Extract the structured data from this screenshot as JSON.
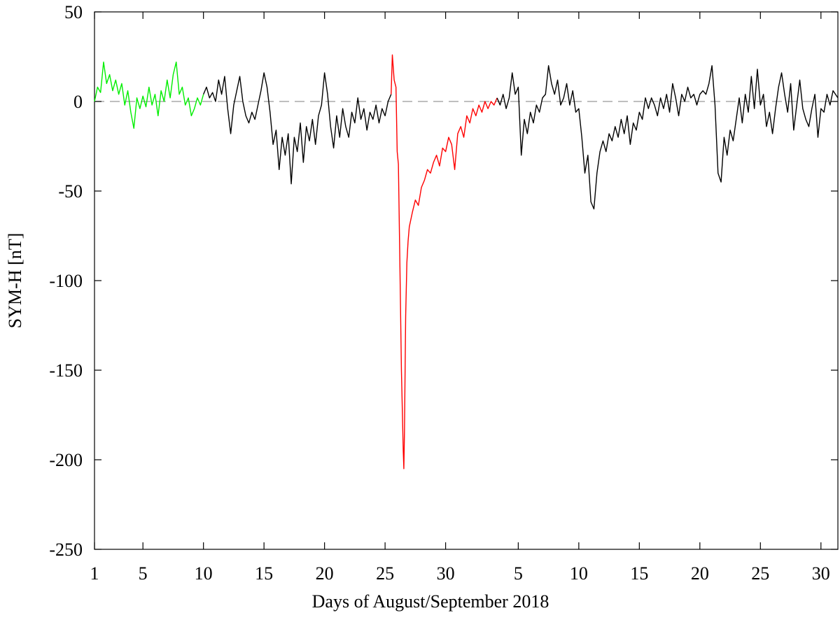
{
  "chart_data": {
    "type": "line",
    "xlabel": "Days of August/September 2018",
    "ylabel": "SYM-H [nT]",
    "xlim": [
      1,
      62.4
    ],
    "ylim": [
      -250,
      50
    ],
    "xticks": [
      1,
      5,
      10,
      15,
      20,
      25,
      30,
      {
        "value": 36,
        "label": "5"
      },
      {
        "value": 41,
        "label": "10"
      },
      {
        "value": 46,
        "label": "15"
      },
      {
        "value": 51,
        "label": "20"
      },
      {
        "value": 56,
        "label": "25"
      },
      {
        "value": 61,
        "label": "30"
      }
    ],
    "yticks": [
      50,
      0,
      -50,
      -100,
      -150,
      -200,
      -250
    ],
    "hlines": [
      0
    ],
    "series": [
      {
        "color": "#00ee00",
        "x": [
          1,
          1.25,
          1.5,
          1.75,
          2,
          2.25,
          2.5,
          2.75,
          3,
          3.25,
          3.5,
          3.75,
          4,
          4.25,
          4.5,
          4.75,
          5,
          5.25,
          5.5,
          5.75,
          6,
          6.25,
          6.5,
          6.75,
          7,
          7.25,
          7.5,
          7.75,
          8,
          8.25,
          8.5,
          8.75,
          9,
          9.25,
          9.5,
          9.75,
          10
        ],
        "values": [
          0,
          8,
          5,
          22,
          10,
          15,
          6,
          12,
          4,
          10,
          -2,
          6,
          -6,
          -15,
          2,
          -4,
          3,
          -3,
          8,
          -2,
          4,
          -8,
          6,
          0,
          12,
          2,
          15,
          22,
          4,
          8,
          -2,
          2,
          -8,
          -4,
          2,
          -2,
          4
        ]
      },
      {
        "color": "#000000",
        "x": [
          10,
          10.25,
          10.5,
          10.75,
          11,
          11.25,
          11.5,
          11.75,
          12,
          12.25,
          12.5,
          12.75,
          13,
          13.25,
          13.5,
          13.75,
          14,
          14.25,
          14.5,
          14.75,
          15,
          15.25,
          15.5,
          15.75,
          16,
          16.25,
          16.5,
          16.75,
          17,
          17.25,
          17.5,
          17.75,
          18,
          18.25,
          18.5,
          18.75,
          19,
          19.25,
          19.5,
          19.75,
          20,
          20.25,
          20.5,
          20.75,
          21,
          21.25,
          21.5,
          21.75,
          22,
          22.25,
          22.5,
          22.75,
          23,
          23.25,
          23.5,
          23.75,
          24,
          24.25,
          24.5,
          24.75,
          25,
          25.25,
          25.5
        ],
        "values": [
          4,
          8,
          2,
          5,
          0,
          12,
          4,
          14,
          -4,
          -18,
          -2,
          6,
          14,
          0,
          -8,
          -12,
          -6,
          -10,
          -2,
          6,
          16,
          8,
          -6,
          -24,
          -16,
          -38,
          -20,
          -30,
          -18,
          -46,
          -20,
          -28,
          -12,
          -34,
          -14,
          -22,
          -10,
          -24,
          -8,
          -2,
          16,
          4,
          -14,
          -26,
          -8,
          -20,
          -4,
          -14,
          -20,
          -6,
          -12,
          2,
          -10,
          -4,
          -16,
          -6,
          -10,
          -2,
          -12,
          -4,
          -8,
          0,
          4
        ]
      },
      {
        "color": "#ff0000",
        "x": [
          25.5,
          25.6,
          25.75,
          25.9,
          26,
          26.1,
          26.2,
          26.35,
          26.5,
          26.55,
          26.6,
          26.7,
          26.8,
          26.9,
          27,
          27.25,
          27.5,
          27.75,
          28,
          28.25,
          28.5,
          28.75,
          29,
          29.25,
          29.5,
          29.75,
          30,
          30.25,
          30.5,
          30.75,
          31,
          31.25,
          31.5,
          31.75,
          32,
          32.25,
          32.5,
          32.75,
          33,
          33.25,
          33.5,
          33.75,
          34,
          34.25
        ],
        "values": [
          4,
          26,
          12,
          8,
          -28,
          -35,
          -80,
          -150,
          -195,
          -205,
          -185,
          -120,
          -90,
          -78,
          -70,
          -62,
          -55,
          -58,
          -48,
          -44,
          -38,
          -40,
          -34,
          -30,
          -36,
          -26,
          -28,
          -20,
          -24,
          -38,
          -18,
          -14,
          -20,
          -8,
          -12,
          -4,
          -8,
          -2,
          -6,
          0,
          -4,
          0,
          -2,
          2
        ]
      },
      {
        "color": "#000000",
        "x": [
          34.25,
          34.5,
          34.75,
          35,
          35.25,
          35.5,
          35.75,
          36,
          36.25,
          36.5,
          36.75,
          37,
          37.25,
          37.5,
          37.75,
          38,
          38.25,
          38.5,
          38.75,
          39,
          39.25,
          39.5,
          39.75,
          40,
          40.25,
          40.5,
          40.75,
          41,
          41.25,
          41.5,
          41.75,
          42,
          42.25,
          42.5,
          42.75,
          43,
          43.25,
          43.5,
          43.75,
          44,
          44.25,
          44.5,
          44.75,
          45,
          45.25,
          45.5,
          45.75,
          46,
          46.25,
          46.5,
          46.75,
          47,
          47.25,
          47.5,
          47.75,
          48,
          48.25,
          48.5,
          48.75,
          49,
          49.25,
          49.5,
          49.75,
          50,
          50.25,
          50.5,
          50.75,
          51,
          51.25,
          51.5,
          51.75,
          52,
          52.25,
          52.5,
          52.75,
          53,
          53.25,
          53.5,
          53.75,
          54,
          54.25,
          54.5,
          54.75,
          55,
          55.25,
          55.5,
          55.75,
          56,
          56.25,
          56.5,
          56.75,
          57,
          57.25,
          57.5,
          57.75,
          58,
          58.25,
          58.5,
          58.75,
          59,
          59.25,
          59.5,
          59.75,
          60,
          60.25,
          60.5,
          60.75,
          61,
          61.25,
          61.5,
          61.75,
          62,
          62.4
        ],
        "values": [
          2,
          -2,
          4,
          -4,
          2,
          16,
          4,
          8,
          -30,
          -10,
          -18,
          -6,
          -12,
          -2,
          -6,
          2,
          4,
          20,
          10,
          4,
          12,
          -2,
          2,
          10,
          -2,
          6,
          -6,
          -4,
          -20,
          -40,
          -30,
          -56,
          -60,
          -40,
          -28,
          -22,
          -28,
          -18,
          -22,
          -14,
          -20,
          -10,
          -18,
          -8,
          -24,
          -12,
          -16,
          -6,
          -10,
          2,
          -4,
          2,
          -2,
          -8,
          2,
          -4,
          4,
          -6,
          10,
          2,
          -8,
          4,
          0,
          8,
          2,
          4,
          -2,
          4,
          6,
          4,
          10,
          20,
          -2,
          -40,
          -45,
          -20,
          -30,
          -16,
          -22,
          -10,
          2,
          -12,
          4,
          -6,
          14,
          -4,
          18,
          -2,
          4,
          -14,
          -6,
          -18,
          -4,
          8,
          16,
          4,
          -6,
          10,
          -16,
          -2,
          12,
          -4,
          -10,
          -14,
          -4,
          4,
          -20,
          -4,
          -6,
          4,
          -2,
          6,
          2
        ]
      }
    ]
  }
}
